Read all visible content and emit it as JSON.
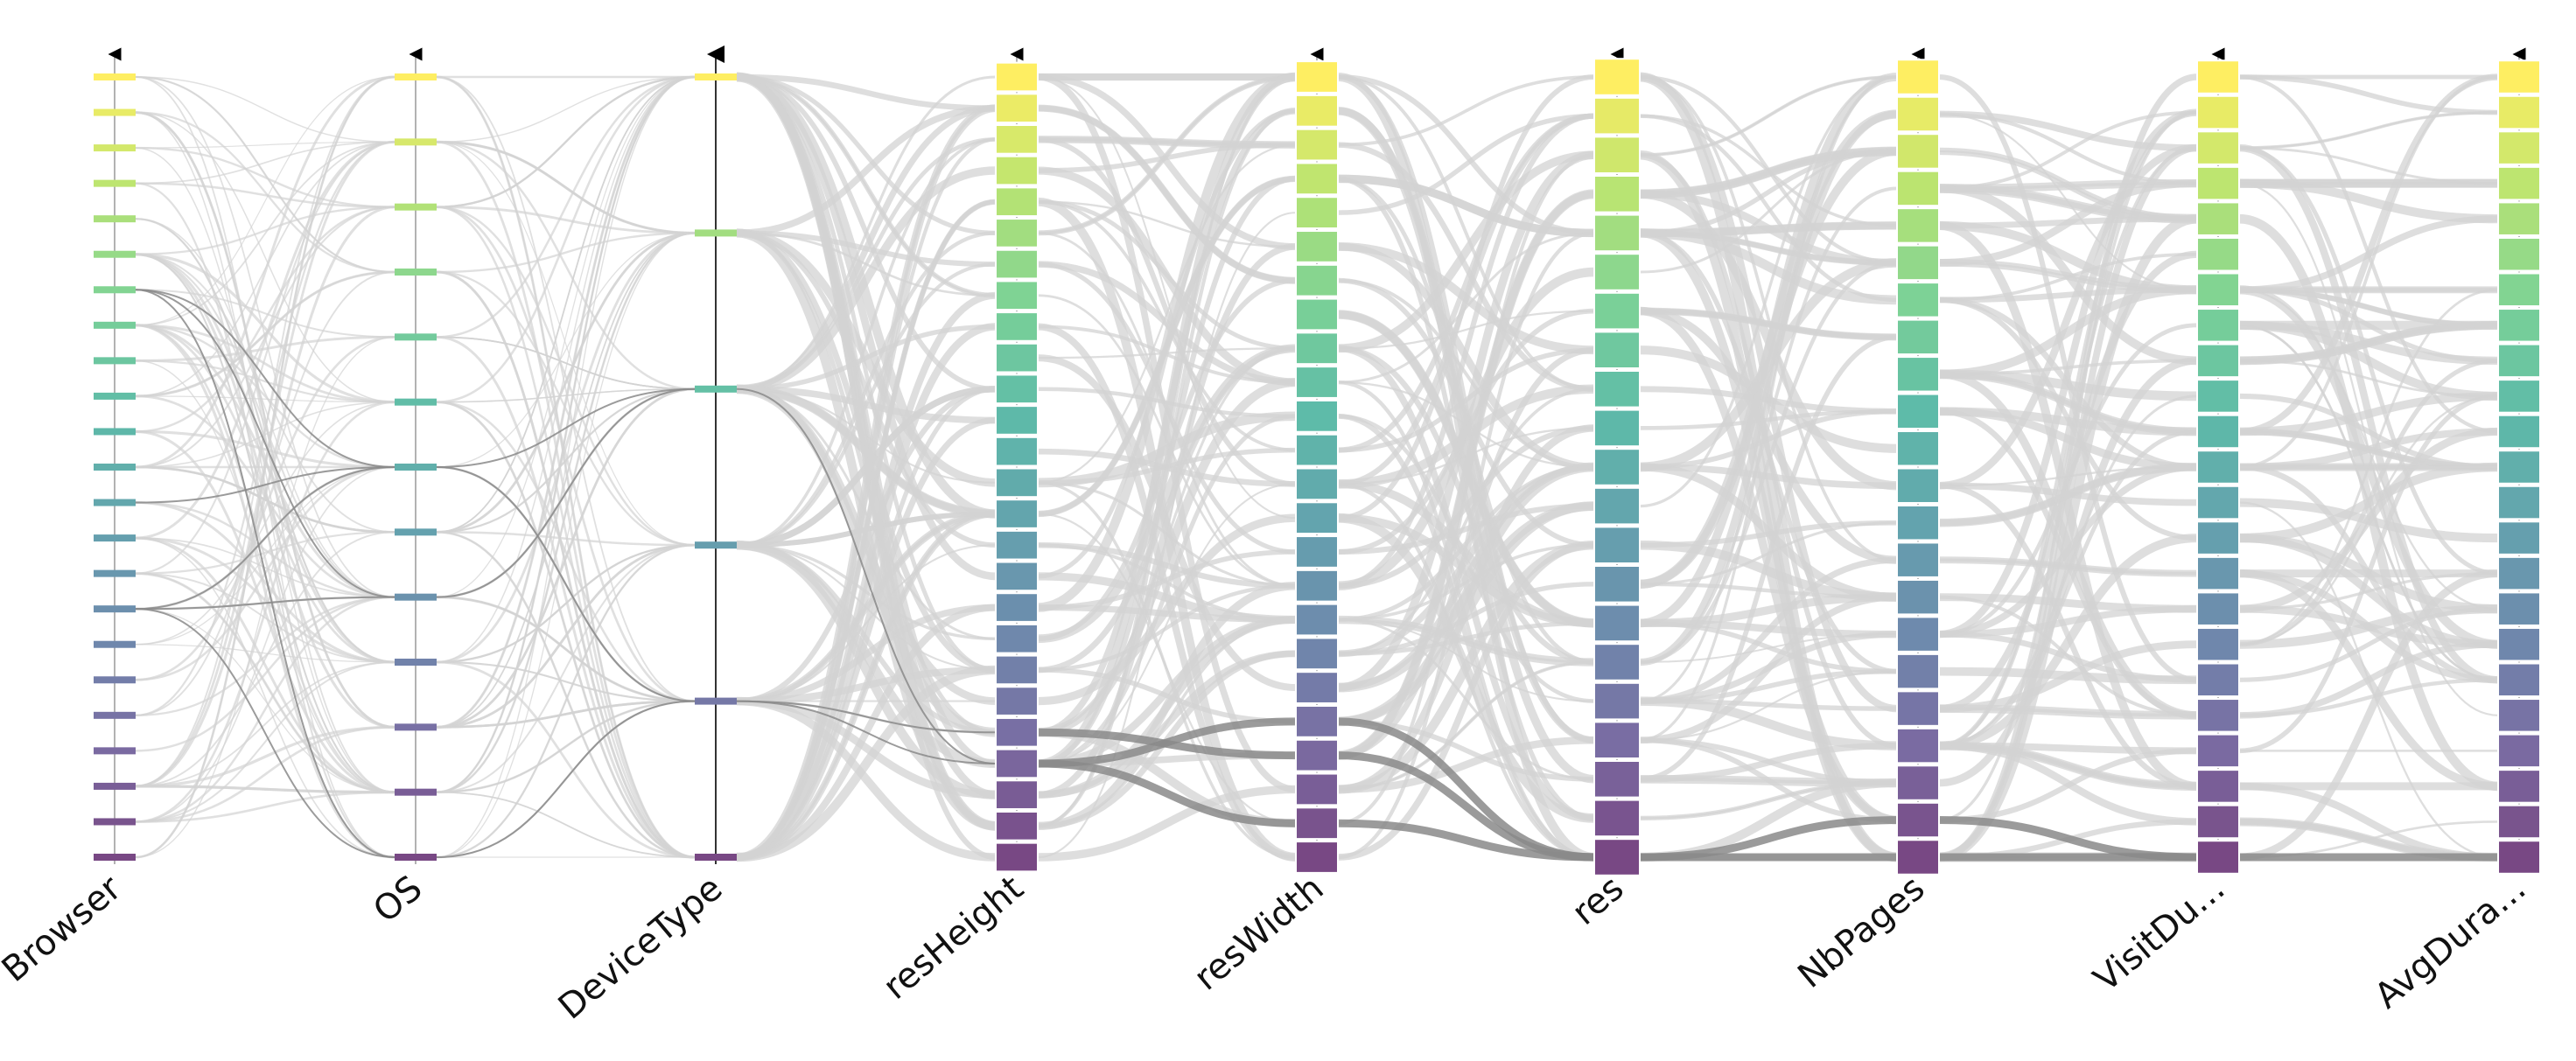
{
  "chart_data": {
    "type": "parallel-categories",
    "axes": [
      {
        "name": "Browser",
        "label": "Browser",
        "n_categories": 23
      },
      {
        "name": "OS",
        "label": "OS",
        "n_categories": 13
      },
      {
        "name": "DeviceType",
        "label": "DeviceType",
        "n_categories": 6
      },
      {
        "name": "resHeight",
        "label": "resHeight",
        "n_categories": 26
      },
      {
        "name": "resWidth",
        "label": "resWidth",
        "n_categories": 24
      },
      {
        "name": "res",
        "label": "res",
        "n_categories": 21
      },
      {
        "name": "NbPages",
        "label": "NbPages",
        "n_categories": 22
      },
      {
        "name": "VisitDu...",
        "label": "VisitDu...",
        "n_categories": 23
      },
      {
        "name": "AvgDura...",
        "label": "AvgDura...",
        "n_categories": 23
      }
    ],
    "colormap": [
      "#fde725",
      "#a0da39",
      "#4ac16d",
      "#1fa187",
      "#277f8e",
      "#365c8d",
      "#46327e",
      "#440154"
    ],
    "link_color": "#d3d3d3",
    "highlight_color": "#8a8a8a",
    "axis_label_text": [
      "Browser",
      "OS",
      "DeviceType",
      "resHeight",
      "resWidth",
      "res",
      "NbPages",
      "VisitDu...",
      "AvgDura..."
    ]
  }
}
